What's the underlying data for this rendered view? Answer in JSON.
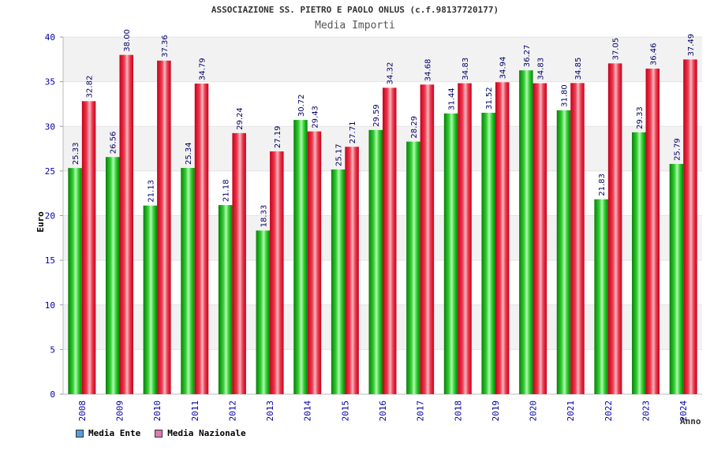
{
  "chart_data": {
    "type": "bar",
    "title": "ASSOCIAZIONE SS. PIETRO E PAOLO ONLUS (c.f.98137720177)",
    "subtitle": "Media Importi",
    "xlabel": "Anno",
    "ylabel": "Euro",
    "ylim": [
      0,
      40
    ],
    "yticks": [
      "0",
      "5",
      "10",
      "15",
      "20",
      "25",
      "30",
      "35",
      "40"
    ],
    "grid": "horizontal bands",
    "legend_position": "bottom-left",
    "categories": [
      "2008",
      "2009",
      "2010",
      "2011",
      "2012",
      "2013",
      "2014",
      "2015",
      "2016",
      "2017",
      "2018",
      "2019",
      "2020",
      "2021",
      "2022",
      "2023",
      "2024"
    ],
    "series": [
      {
        "name": "Media Ente",
        "color": "#00aa00",
        "legend_color": "#5b9bd5",
        "values": [
          25.33,
          26.56,
          21.13,
          25.34,
          21.18,
          18.33,
          30.72,
          25.17,
          29.59,
          28.29,
          31.44,
          31.52,
          36.27,
          31.8,
          21.83,
          29.33,
          25.79
        ],
        "labels": [
          "25.33",
          "26.56",
          "21.13",
          "25.34",
          "21.18",
          "18.33",
          "30.72",
          "25.17",
          "29.59",
          "28.29",
          "31.44",
          "31.52",
          "36.27",
          "31.80",
          "21.83",
          "29.33",
          "25.79"
        ]
      },
      {
        "name": "Media Nazionale",
        "color": "#e8102a",
        "legend_color": "#e07ab0",
        "values": [
          32.82,
          38.0,
          37.36,
          34.79,
          29.24,
          27.19,
          29.43,
          27.71,
          34.32,
          34.68,
          34.83,
          34.94,
          34.83,
          34.85,
          37.05,
          36.46,
          37.49
        ],
        "labels": [
          "32.82",
          "38.00",
          "37.36",
          "34.79",
          "29.24",
          "27.19",
          "29.43",
          "27.71",
          "34.32",
          "34.68",
          "34.83",
          "34.94",
          "34.83",
          "34.85",
          "37.05",
          "36.46",
          "37.49"
        ]
      }
    ]
  }
}
